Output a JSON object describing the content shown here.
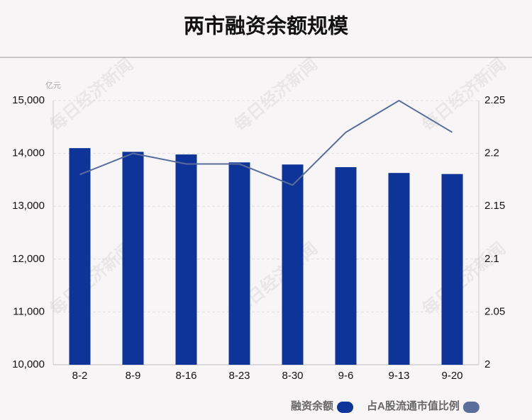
{
  "chart_data": {
    "type": "bar-line",
    "title": "两市融资余额规模",
    "y_unit": "亿元",
    "watermark": "每日经济新闻",
    "categories": [
      "8-2",
      "8-9",
      "8-16",
      "8-23",
      "8-30",
      "9-6",
      "9-13",
      "9-20"
    ],
    "series": [
      {
        "name": "融资余额",
        "type": "bar",
        "color": "#0e3399",
        "values": [
          14100,
          14030,
          13980,
          13830,
          13790,
          13740,
          13630,
          13610
        ]
      },
      {
        "name": "占A股流通市值比例",
        "type": "line",
        "axis": "y2",
        "color": "#5a6e9c",
        "values": [
          2.18,
          2.2,
          2.19,
          2.19,
          2.17,
          2.22,
          2.25,
          2.22
        ]
      }
    ],
    "ylim": [
      10000,
      15000
    ],
    "yticks": [
      {
        "value": 10000,
        "label": "10,000"
      },
      {
        "value": 11000,
        "label": "11,000"
      },
      {
        "value": 12000,
        "label": "12,000"
      },
      {
        "value": 13000,
        "label": "13,000"
      },
      {
        "value": 14000,
        "label": "14,000"
      },
      {
        "value": 15000,
        "label": "15,000"
      }
    ],
    "y2lim": [
      2,
      2.25
    ],
    "y2ticks": [
      2,
      2.05,
      2.1,
      2.15,
      2.2,
      2.25
    ],
    "grid": true
  }
}
